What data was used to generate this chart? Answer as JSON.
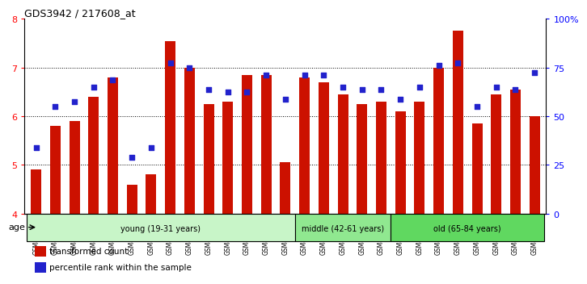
{
  "title": "GDS3942 / 217608_at",
  "samples": [
    "GSM812988",
    "GSM812989",
    "GSM812990",
    "GSM812991",
    "GSM812992",
    "GSM812993",
    "GSM812994",
    "GSM812995",
    "GSM812996",
    "GSM812997",
    "GSM812998",
    "GSM812999",
    "GSM813000",
    "GSM813001",
    "GSM813002",
    "GSM813003",
    "GSM813004",
    "GSM813005",
    "GSM813006",
    "GSM813007",
    "GSM813008",
    "GSM813009",
    "GSM813010",
    "GSM813011",
    "GSM813012",
    "GSM813013",
    "GSM813014"
  ],
  "bar_values": [
    4.9,
    5.8,
    5.9,
    6.4,
    6.8,
    4.6,
    4.8,
    7.55,
    7.0,
    6.25,
    6.3,
    6.85,
    6.85,
    5.05,
    6.8,
    6.7,
    6.45,
    6.25,
    6.3,
    6.1,
    6.3,
    7.0,
    7.75,
    5.85,
    6.45,
    6.55,
    6.0
  ],
  "dot_values": [
    5.35,
    6.2,
    6.3,
    6.6,
    6.75,
    5.15,
    5.35,
    7.1,
    7.0,
    6.55,
    6.5,
    6.5,
    6.85,
    6.35,
    6.85,
    6.85,
    6.6,
    6.55,
    6.55,
    6.35,
    6.6,
    7.05,
    7.1,
    6.2,
    6.6,
    6.55,
    6.9
  ],
  "groups": [
    {
      "label": "young (19-31 years)",
      "start": 0,
      "end": 14,
      "color": "#c8f5c8"
    },
    {
      "label": "middle (42-61 years)",
      "start": 14,
      "end": 19,
      "color": "#90e890"
    },
    {
      "label": "old (65-84 years)",
      "start": 19,
      "end": 27,
      "color": "#60d860"
    }
  ],
  "ylim_left": [
    4,
    8
  ],
  "ylim_right": [
    0,
    100
  ],
  "yticks_left": [
    4,
    5,
    6,
    7,
    8
  ],
  "yticks_right": [
    0,
    25,
    50,
    75,
    100
  ],
  "ytick_labels_right": [
    "0",
    "25",
    "50",
    "75",
    "100%"
  ],
  "bar_color": "#cc1100",
  "dot_color": "#2222cc",
  "bar_width": 0.55,
  "background_color": "#ffffff",
  "age_label": "age",
  "legend_bar": "transformed count",
  "legend_dot": "percentile rank within the sample",
  "ymin": 4
}
